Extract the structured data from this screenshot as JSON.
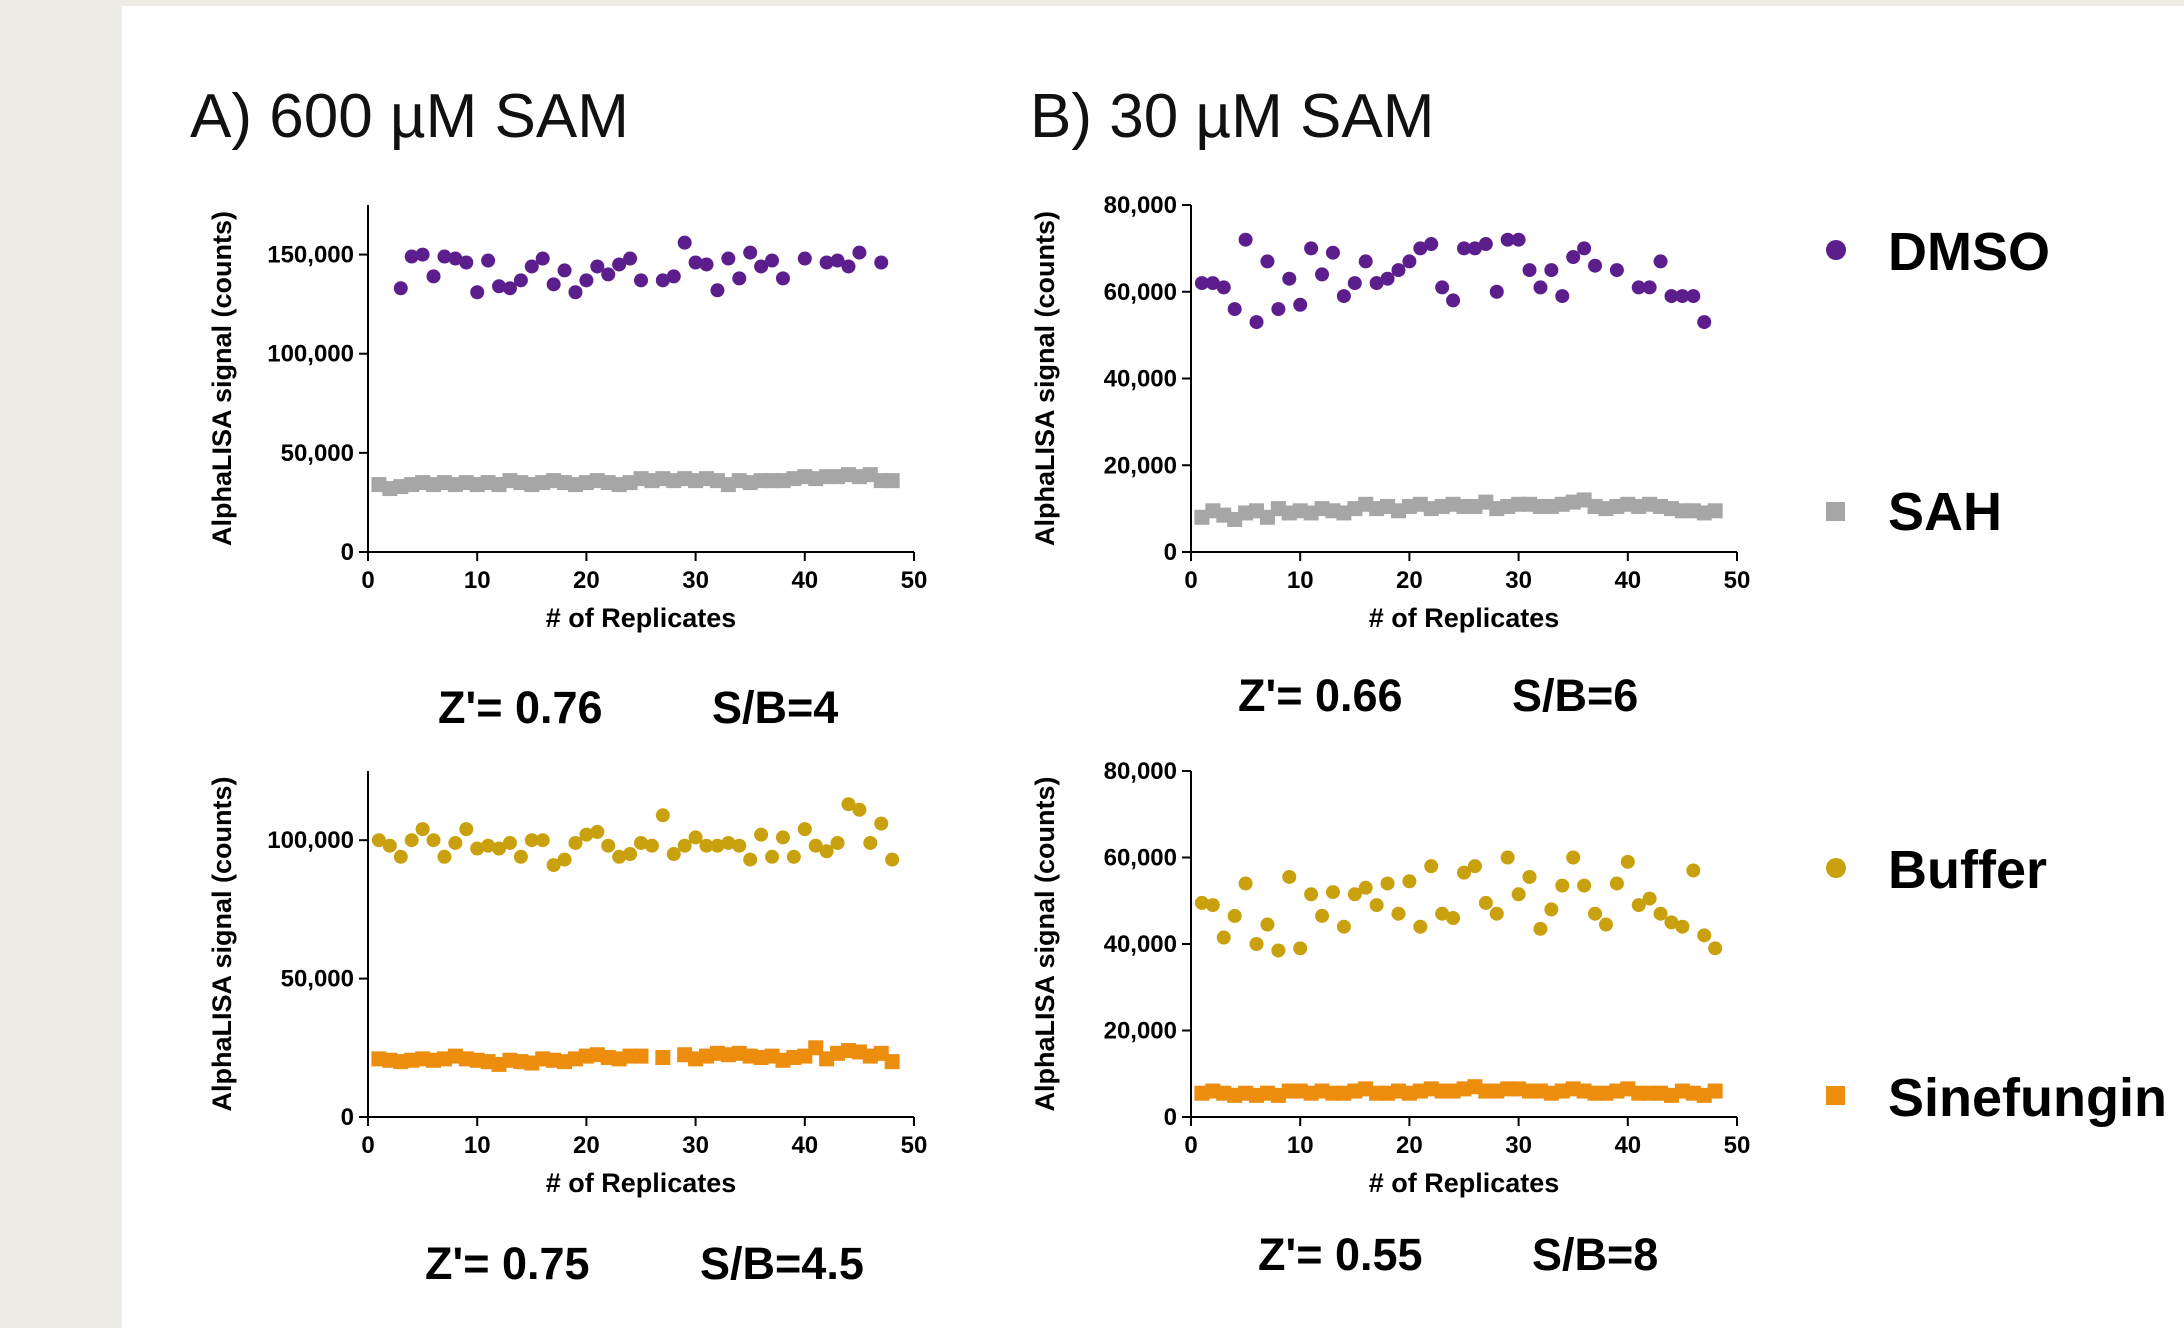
{
  "panels": [
    {
      "id": "A",
      "title": "A) 600 µM SAM"
    },
    {
      "id": "B",
      "title": "B) 30 µM SAM"
    }
  ],
  "colors": {
    "DMSO": "#5b1e8c",
    "SAH": "#a6a6a6",
    "Buffer": "#c9a00d",
    "Sinefungin": "#ec8d0d"
  },
  "legend": [
    {
      "label": "DMSO",
      "marker": "circle",
      "color": "#5b1e8c"
    },
    {
      "label": "SAH",
      "marker": "square",
      "color": "#a6a6a6"
    },
    {
      "label": "Buffer",
      "marker": "circle",
      "color": "#c9a00d"
    },
    {
      "label": "Sinefungin",
      "marker": "square",
      "color": "#ec8d0d"
    }
  ],
  "chart_data": [
    {
      "type": "scatter",
      "panel": "A",
      "xlabel": "# of Replicates",
      "ylabel": "AlphaLISA signal (counts)",
      "xlim": [
        0,
        50
      ],
      "ylim": [
        0,
        175000
      ],
      "xticks": [
        0,
        10,
        20,
        30,
        40,
        50
      ],
      "yticks": [
        0,
        50000,
        100000,
        150000
      ],
      "ytick_labels": [
        "0",
        "50,000",
        "100,000",
        "150,000"
      ],
      "z_prime": "Z'= 0.76",
      "sb": "S/B=4",
      "series": [
        {
          "name": "DMSO",
          "marker": "circle",
          "color": "#5b1e8c",
          "x": [
            3,
            4,
            5,
            6,
            7,
            8,
            9,
            10,
            11,
            12,
            13,
            14,
            15,
            16,
            17,
            18,
            19,
            20,
            21,
            22,
            23,
            24,
            25,
            27,
            28,
            29,
            30,
            31,
            32,
            33,
            34,
            35,
            36,
            37,
            38,
            40,
            42,
            43,
            44,
            45,
            47
          ],
          "y": [
            133000,
            149000,
            150000,
            139000,
            149000,
            148000,
            146000,
            131000,
            147000,
            134000,
            133000,
            137000,
            144000,
            148000,
            135000,
            142000,
            131000,
            137000,
            144000,
            140000,
            145000,
            148000,
            137000,
            137000,
            139000,
            156000,
            146000,
            145000,
            132000,
            148000,
            138000,
            151000,
            144000,
            147000,
            138000,
            148000,
            146000,
            147000,
            144000,
            151000,
            146000
          ]
        },
        {
          "name": "SAH",
          "marker": "square",
          "color": "#a6a6a6",
          "x": [
            1,
            2,
            3,
            4,
            5,
            6,
            7,
            8,
            9,
            10,
            11,
            12,
            13,
            14,
            15,
            16,
            17,
            18,
            19,
            20,
            21,
            22,
            23,
            24,
            25,
            26,
            27,
            28,
            29,
            30,
            31,
            32,
            33,
            34,
            35,
            36,
            37,
            38,
            39,
            40,
            41,
            42,
            43,
            44,
            45,
            46,
            47,
            48
          ],
          "y": [
            34000,
            32000,
            33000,
            34000,
            35000,
            34000,
            35000,
            34000,
            35000,
            34000,
            35000,
            34000,
            36000,
            35000,
            34000,
            35000,
            36000,
            35000,
            34000,
            35000,
            36000,
            35000,
            34000,
            35000,
            37000,
            36000,
            37000,
            36000,
            37000,
            36000,
            37000,
            36000,
            34000,
            36000,
            35000,
            36000,
            36000,
            36000,
            37000,
            38000,
            37000,
            38000,
            38000,
            39000,
            38000,
            39000,
            36000,
            36000
          ]
        }
      ]
    },
    {
      "type": "scatter",
      "panel": "B",
      "xlabel": "# of Replicates",
      "ylabel": "AlphaLISA signal (counts)",
      "xlim": [
        0,
        50
      ],
      "ylim": [
        0,
        80000
      ],
      "xticks": [
        0,
        10,
        20,
        30,
        40,
        50
      ],
      "yticks": [
        0,
        20000,
        40000,
        60000,
        80000
      ],
      "ytick_labels": [
        "0",
        "20,000",
        "40,000",
        "60,000",
        "80,000"
      ],
      "z_prime": "Z'= 0.66",
      "sb": "S/B=6",
      "series": [
        {
          "name": "DMSO",
          "marker": "circle",
          "color": "#5b1e8c",
          "x": [
            1,
            2,
            3,
            4,
            5,
            6,
            7,
            8,
            9,
            10,
            11,
            12,
            13,
            14,
            15,
            16,
            17,
            18,
            19,
            20,
            21,
            22,
            23,
            24,
            25,
            26,
            27,
            28,
            29,
            30,
            31,
            32,
            33,
            34,
            35,
            36,
            37,
            39,
            41,
            42,
            43,
            44,
            45,
            46,
            47
          ],
          "y": [
            62000,
            62000,
            61000,
            56000,
            72000,
            53000,
            67000,
            56000,
            63000,
            57000,
            70000,
            64000,
            69000,
            59000,
            62000,
            67000,
            62000,
            63000,
            65000,
            67000,
            70000,
            71000,
            61000,
            58000,
            70000,
            70000,
            71000,
            60000,
            72000,
            72000,
            65000,
            61000,
            65000,
            59000,
            68000,
            70000,
            66000,
            65000,
            61000,
            61000,
            67000,
            59000,
            59000,
            59000,
            53000
          ]
        },
        {
          "name": "SAH",
          "marker": "square",
          "color": "#a6a6a6",
          "x": [
            1,
            2,
            3,
            4,
            5,
            6,
            7,
            8,
            9,
            10,
            11,
            12,
            13,
            14,
            15,
            16,
            17,
            18,
            19,
            20,
            21,
            22,
            23,
            24,
            25,
            26,
            27,
            28,
            29,
            30,
            31,
            32,
            33,
            34,
            35,
            36,
            37,
            38,
            39,
            40,
            41,
            42,
            43,
            44,
            45,
            46,
            47,
            48
          ],
          "y": [
            8000,
            9500,
            8500,
            7500,
            9000,
            9500,
            8000,
            10000,
            9000,
            9500,
            9000,
            10000,
            9500,
            9000,
            10000,
            11000,
            10000,
            10500,
            9500,
            10500,
            11000,
            10000,
            10500,
            11000,
            10500,
            10500,
            11500,
            10000,
            10500,
            11000,
            11000,
            10500,
            10500,
            11000,
            11500,
            12000,
            10500,
            10000,
            10500,
            11000,
            10500,
            11000,
            10500,
            10000,
            9500,
            9500,
            9000,
            9500
          ]
        }
      ]
    },
    {
      "type": "scatter",
      "panel": "A",
      "xlabel": "# of Replicates",
      "ylabel": "AlphaLISA signal (counts)",
      "xlim": [
        0,
        50
      ],
      "ylim": [
        0,
        125000
      ],
      "xticks": [
        0,
        10,
        20,
        30,
        40,
        50
      ],
      "yticks": [
        0,
        50000,
        100000
      ],
      "ytick_labels": [
        "0",
        "50,000",
        "100,000"
      ],
      "z_prime": "Z'= 0.75",
      "sb": "S/B=4.5",
      "series": [
        {
          "name": "Buffer",
          "marker": "circle",
          "color": "#c9a00d",
          "x": [
            1,
            2,
            3,
            4,
            5,
            6,
            7,
            8,
            9,
            10,
            11,
            12,
            13,
            14,
            15,
            16,
            17,
            18,
            19,
            20,
            21,
            22,
            23,
            24,
            25,
            26,
            27,
            28,
            29,
            30,
            31,
            32,
            33,
            34,
            35,
            36,
            37,
            38,
            39,
            40,
            41,
            42,
            43,
            44,
            45,
            46,
            47,
            48
          ],
          "y": [
            100000,
            98000,
            94000,
            100000,
            104000,
            100000,
            94000,
            99000,
            104000,
            97000,
            98000,
            97000,
            99000,
            94000,
            100000,
            100000,
            91000,
            93000,
            99000,
            102000,
            103000,
            98000,
            94000,
            95000,
            99000,
            98000,
            109000,
            95000,
            98000,
            101000,
            98000,
            98000,
            99000,
            98000,
            93000,
            102000,
            94000,
            101000,
            94000,
            104000,
            98000,
            96000,
            99000,
            113000,
            111000,
            99000,
            106000,
            93000
          ]
        },
        {
          "name": "Sinefungin",
          "marker": "square",
          "color": "#ec8d0d",
          "x": [
            1,
            2,
            3,
            4,
            5,
            6,
            7,
            8,
            9,
            10,
            11,
            12,
            13,
            14,
            15,
            16,
            17,
            18,
            19,
            20,
            21,
            22,
            23,
            24,
            25,
            27,
            29,
            30,
            31,
            32,
            33,
            34,
            35,
            36,
            37,
            38,
            39,
            40,
            41,
            42,
            43,
            44,
            45,
            46,
            47,
            48
          ],
          "y": [
            21000,
            20500,
            20000,
            20500,
            21000,
            20500,
            21000,
            22000,
            21000,
            20500,
            20000,
            19000,
            20500,
            20000,
            19500,
            21000,
            20500,
            20000,
            21000,
            22000,
            22500,
            21500,
            21000,
            22000,
            22000,
            21500,
            22500,
            21000,
            22000,
            23000,
            22500,
            23000,
            22000,
            21500,
            22000,
            20500,
            21500,
            22000,
            25000,
            21000,
            23000,
            24000,
            23500,
            22000,
            23000,
            20000
          ]
        }
      ]
    },
    {
      "type": "scatter",
      "panel": "B",
      "xlabel": "# of Replicates",
      "ylabel": "AlphaLISA signal (counts)",
      "xlim": [
        0,
        50
      ],
      "ylim": [
        0,
        80000
      ],
      "xticks": [
        0,
        10,
        20,
        30,
        40,
        50
      ],
      "yticks": [
        0,
        20000,
        40000,
        60000,
        80000
      ],
      "ytick_labels": [
        "0",
        "20,000",
        "40,000",
        "60,000",
        "80,000"
      ],
      "z_prime": "Z'= 0.55",
      "sb": "S/B=8",
      "series": [
        {
          "name": "Buffer",
          "marker": "circle",
          "color": "#c9a00d",
          "x": [
            1,
            2,
            3,
            4,
            5,
            6,
            7,
            8,
            9,
            10,
            11,
            12,
            13,
            14,
            15,
            16,
            17,
            18,
            19,
            20,
            21,
            22,
            23,
            24,
            25,
            26,
            27,
            28,
            29,
            30,
            31,
            32,
            33,
            34,
            35,
            36,
            37,
            38,
            39,
            40,
            41,
            42,
            43,
            44,
            45,
            46,
            47,
            48
          ],
          "y": [
            49500,
            49000,
            41500,
            46500,
            54000,
            40000,
            44500,
            38500,
            55500,
            39000,
            51500,
            46500,
            52000,
            44000,
            51500,
            53000,
            49000,
            54000,
            47000,
            54500,
            44000,
            58000,
            47000,
            46000,
            56500,
            58000,
            49500,
            47000,
            60000,
            51500,
            55500,
            43500,
            48000,
            53500,
            60000,
            53500,
            47000,
            44500,
            54000,
            59000,
            49000,
            50500,
            47000,
            45000,
            44000,
            57000,
            42000,
            39000
          ]
        },
        {
          "name": "Sinefungin",
          "marker": "square",
          "color": "#ec8d0d",
          "x": [
            1,
            2,
            3,
            4,
            5,
            6,
            7,
            8,
            9,
            10,
            11,
            12,
            13,
            14,
            15,
            16,
            17,
            18,
            19,
            20,
            21,
            22,
            23,
            24,
            25,
            26,
            27,
            28,
            29,
            30,
            31,
            32,
            33,
            34,
            35,
            36,
            37,
            38,
            39,
            40,
            41,
            42,
            43,
            44,
            45,
            46,
            47,
            48
          ],
          "y": [
            5500,
            6000,
            5500,
            5000,
            5500,
            5000,
            5500,
            5000,
            6000,
            6000,
            5500,
            6000,
            5500,
            5500,
            6000,
            6500,
            5500,
            5500,
            6000,
            5500,
            6000,
            6500,
            6000,
            6000,
            6500,
            7000,
            6000,
            6000,
            6500,
            6500,
            6000,
            6000,
            5500,
            6000,
            6500,
            6000,
            5500,
            5500,
            6000,
            6500,
            5500,
            5500,
            5500,
            5000,
            6000,
            5500,
            5000,
            6000
          ]
        }
      ]
    }
  ]
}
